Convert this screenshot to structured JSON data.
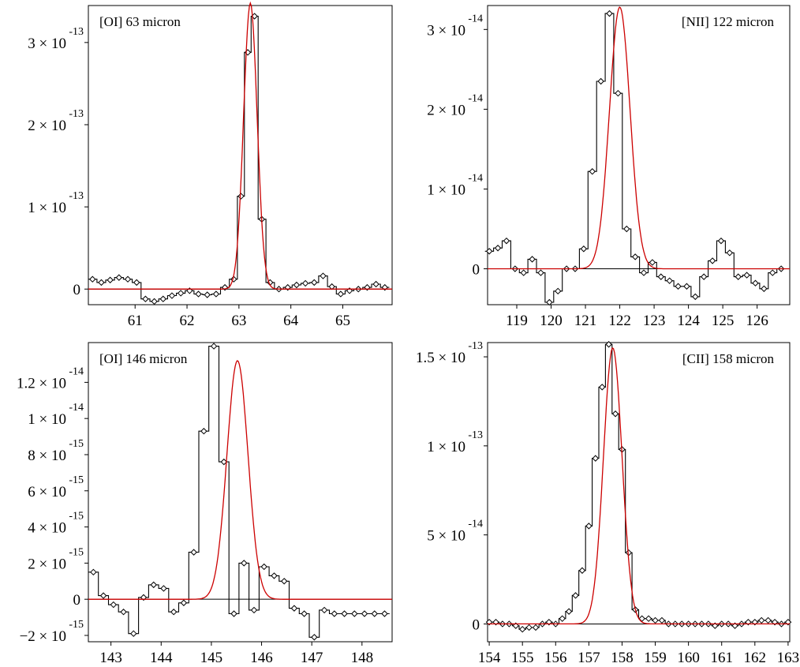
{
  "colors": {
    "data": "#000000",
    "fit": "#cc0000",
    "frame": "#000000"
  },
  "chart_data": [
    {
      "type": "line",
      "title": "[OI] 63 micron",
      "xlabel": "",
      "ylabel": "",
      "xlim": [
        60.1,
        65.95
      ],
      "ylim": [
        -1.9e-14,
        3.45e-13
      ],
      "xticks": [
        {
          "v": 61,
          "label": "61"
        },
        {
          "v": 62,
          "label": "62"
        },
        {
          "v": 63,
          "label": "63"
        },
        {
          "v": 64,
          "label": "64"
        },
        {
          "v": 65,
          "label": "65"
        }
      ],
      "yticks": [
        {
          "v": 0,
          "label": "0"
        },
        {
          "v": 1e-13,
          "mant": "1 × 10",
          "exp": "-13"
        },
        {
          "v": 2e-13,
          "mant": "2 × 10",
          "exp": "-13"
        },
        {
          "v": 3e-13,
          "mant": "3 × 10",
          "exp": "-13"
        }
      ],
      "fit": {
        "amp": 3.48e-13,
        "center": 63.22,
        "sigma": 0.13
      },
      "series": [
        {
          "role": "data",
          "x": [
            60.18,
            60.35,
            60.52,
            60.69,
            60.86,
            61.03,
            61.2,
            61.37,
            61.54,
            61.71,
            61.88,
            62.05,
            62.22,
            62.39,
            62.56,
            62.73,
            62.9,
            63.04,
            63.17,
            63.3,
            63.44,
            63.6,
            63.77,
            63.94,
            64.11,
            64.28,
            64.45,
            64.62,
            64.79,
            64.96,
            65.13,
            65.3,
            65.47,
            65.64,
            65.81
          ],
          "y": [
            1.2e-14,
            8e-15,
            1.1e-14,
            1.4e-14,
            1.2e-14,
            8e-15,
            -1.2e-14,
            -1.5e-14,
            -1.2e-14,
            -8e-15,
            -5e-15,
            -2e-15,
            -6e-15,
            -7e-15,
            -6e-15,
            2e-15,
            1.2e-14,
            1.13e-13,
            2.88e-13,
            3.32e-13,
            8.5e-14,
            8e-15,
            0.0,
            2e-15,
            5e-15,
            7e-15,
            8e-15,
            1.6e-14,
            3e-15,
            -6e-15,
            -2e-15,
            0.0,
            2e-15,
            6e-15,
            2e-15
          ]
        }
      ]
    },
    {
      "type": "line",
      "title": "[NII] 122 micron",
      "xlabel": "",
      "ylabel": "",
      "xlim": [
        118.15,
        126.95
      ],
      "ylim": [
        -4.5e-15,
        3.3e-14
      ],
      "xticks": [
        {
          "v": 119,
          "label": "119"
        },
        {
          "v": 120,
          "label": "120"
        },
        {
          "v": 121,
          "label": "121"
        },
        {
          "v": 122,
          "label": "122"
        },
        {
          "v": 123,
          "label": "123"
        },
        {
          "v": 124,
          "label": "124"
        },
        {
          "v": 125,
          "label": "125"
        },
        {
          "v": 126,
          "label": "126"
        }
      ],
      "yticks": [
        {
          "v": 0,
          "label": "0"
        },
        {
          "v": 1e-14,
          "mant": "1 × 10",
          "exp": "-14"
        },
        {
          "v": 2e-14,
          "mant": "2 × 10",
          "exp": "-14"
        },
        {
          "v": 3e-14,
          "mant": "3 × 10",
          "exp": "-14"
        }
      ],
      "fit": {
        "amp": 3.28e-14,
        "center": 122.0,
        "sigma": 0.3
      },
      "series": [
        {
          "role": "data",
          "x": [
            118.2,
            118.45,
            118.7,
            118.95,
            119.2,
            119.45,
            119.7,
            119.95,
            120.2,
            120.45,
            120.7,
            120.95,
            121.2,
            121.45,
            121.7,
            121.95,
            122.2,
            122.45,
            122.7,
            122.95,
            123.2,
            123.45,
            123.7,
            123.95,
            124.2,
            124.45,
            124.7,
            124.95,
            125.2,
            125.45,
            125.7,
            125.95,
            126.2,
            126.45,
            126.7
          ],
          "y": [
            2.2e-15,
            2.6e-15,
            3.5e-15,
            0.0,
            -5e-16,
            1.2e-15,
            -5e-16,
            -4.2e-15,
            -2.8e-15,
            0.0,
            0.0,
            2.5e-15,
            1.22e-14,
            2.35e-14,
            3.2e-14,
            2.2e-14,
            5e-15,
            1.5e-15,
            -5e-16,
            8e-16,
            -1e-15,
            -1.5e-15,
            -2.2e-15,
            -2.2e-15,
            -3.5e-15,
            -1e-15,
            1e-15,
            3.5e-15,
            2e-15,
            -1e-15,
            -8e-16,
            -1.8e-15,
            -2.5e-15,
            -5e-16,
            0.0
          ]
        }
      ]
    },
    {
      "type": "line",
      "title": "[OI] 146 micron",
      "xlabel": "",
      "ylabel": "",
      "xlim": [
        142.55,
        148.6
      ],
      "ylim": [
        -2.35e-15,
        1.42e-14
      ],
      "xticks": [
        {
          "v": 143,
          "label": "143"
        },
        {
          "v": 144,
          "label": "144"
        },
        {
          "v": 145,
          "label": "145"
        },
        {
          "v": 146,
          "label": "146"
        },
        {
          "v": 147,
          "label": "147"
        },
        {
          "v": 148,
          "label": "148"
        }
      ],
      "yticks": [
        {
          "v": -2e-15,
          "mant": "−2 × 10",
          "exp": "-15"
        },
        {
          "v": 0,
          "label": "0"
        },
        {
          "v": 2e-15,
          "mant": "2 × 10",
          "exp": "-15"
        },
        {
          "v": 4e-15,
          "mant": "4 × 10",
          "exp": "-15"
        },
        {
          "v": 6e-15,
          "mant": "6 × 10",
          "exp": "-15"
        },
        {
          "v": 8e-15,
          "mant": "8 × 10",
          "exp": "-15"
        },
        {
          "v": 1e-14,
          "mant": "1 × 10",
          "exp": "-14"
        },
        {
          "v": 1.2e-14,
          "mant": "1.2 × 10",
          "exp": "-14"
        }
      ],
      "fit": {
        "amp": 1.32e-14,
        "center": 145.52,
        "sigma": 0.21
      },
      "series": [
        {
          "role": "data",
          "x": [
            142.65,
            142.85,
            143.05,
            143.25,
            143.45,
            143.65,
            143.85,
            144.05,
            144.25,
            144.45,
            144.65,
            144.85,
            145.05,
            145.25,
            145.45,
            145.65,
            145.85,
            146.05,
            146.25,
            146.45,
            146.65,
            146.85,
            147.05,
            147.25,
            147.45,
            147.65,
            147.85,
            148.05,
            148.25,
            148.45
          ],
          "y": [
            1.5e-15,
            2e-16,
            -3e-16,
            -7e-16,
            -1.9e-15,
            1e-16,
            8e-16,
            6e-16,
            -7e-16,
            -2e-16,
            2.6e-15,
            9.3e-15,
            1.4e-14,
            7.6e-15,
            -8e-16,
            2e-15,
            -6e-16,
            1.8e-15,
            1.3e-15,
            1e-15,
            -5e-16,
            -8e-16,
            -2.1e-15,
            -6e-16,
            -8e-16,
            -8e-16,
            -8e-16,
            -8e-16,
            -8e-16,
            -8e-16
          ]
        }
      ]
    },
    {
      "type": "line",
      "title": "[CII] 158 micron",
      "xlabel": "",
      "ylabel": "",
      "xlim": [
        153.95,
        163.05
      ],
      "ylim": [
        -1e-14,
        1.58e-13
      ],
      "xticks": [
        {
          "v": 154,
          "label": "154"
        },
        {
          "v": 155,
          "label": "155"
        },
        {
          "v": 156,
          "label": "156"
        },
        {
          "v": 157,
          "label": "157"
        },
        {
          "v": 158,
          "label": "158"
        },
        {
          "v": 159,
          "label": "159"
        },
        {
          "v": 160,
          "label": "160"
        },
        {
          "v": 161,
          "label": "161"
        },
        {
          "v": 162,
          "label": "162"
        },
        {
          "v": 163,
          "label": "163"
        }
      ],
      "yticks": [
        {
          "v": 0,
          "label": "0"
        },
        {
          "v": 5e-14,
          "mant": "5 × 10",
          "exp": "-14"
        },
        {
          "v": 1e-13,
          "mant": "1 × 10",
          "exp": "-13"
        },
        {
          "v": 1.5e-13,
          "mant": "1.5 × 10",
          "exp": "-13"
        }
      ],
      "fit": {
        "amp": 1.55e-13,
        "center": 157.72,
        "sigma": 0.28
      },
      "series": [
        {
          "role": "data",
          "x": [
            154.0,
            154.2,
            154.4,
            154.6,
            154.8,
            155.0,
            155.2,
            155.4,
            155.6,
            155.8,
            156.0,
            156.2,
            156.4,
            156.6,
            156.8,
            157.0,
            157.2,
            157.4,
            157.6,
            157.8,
            158.0,
            158.2,
            158.4,
            158.6,
            158.8,
            159.0,
            159.2,
            159.4,
            159.6,
            159.8,
            160.0,
            160.2,
            160.4,
            160.6,
            160.8,
            161.0,
            161.2,
            161.4,
            161.6,
            161.8,
            162.0,
            162.2,
            162.4,
            162.6,
            162.8,
            163.0
          ],
          "y": [
            1e-15,
            1e-15,
            0.0,
            0.0,
            -1e-15,
            -3e-15,
            -2e-15,
            -2e-15,
            0.0,
            1e-15,
            0.0,
            3e-15,
            7e-15,
            1.6e-14,
            3e-14,
            5.5e-14,
            9.3e-14,
            1.33e-13,
            1.57e-13,
            1.18e-13,
            9.8e-14,
            4e-14,
            8e-15,
            3e-15,
            3e-15,
            2e-15,
            2e-15,
            0.0,
            0.0,
            0.0,
            0.0,
            0.0,
            0.0,
            0.0,
            -1e-15,
            0.0,
            0.0,
            -1e-15,
            0.0,
            1e-15,
            1e-15,
            2e-15,
            2e-15,
            1e-15,
            0.0,
            1e-15
          ]
        }
      ]
    }
  ]
}
